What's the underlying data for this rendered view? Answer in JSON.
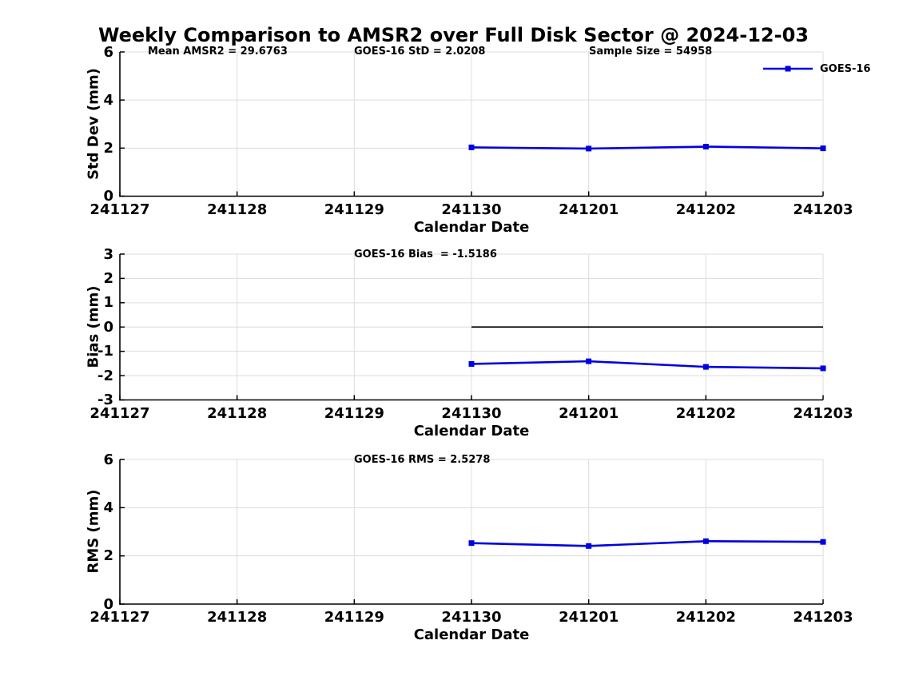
{
  "title": "Weekly Comparison to AMSR2 over Full Disk Sector @ 2024-12-03",
  "legend": {
    "label": "GOES-16",
    "color": "#0000e0"
  },
  "colors": {
    "line": "#0000e0",
    "grid": "#dcdcdc",
    "axis": "#000000",
    "zero_line": "#000000",
    "text": "#000000",
    "background": "#ffffff"
  },
  "x": {
    "label": "Calendar Date",
    "categories": [
      "241127",
      "241128",
      "241129",
      "241130",
      "241201",
      "241202",
      "241203"
    ]
  },
  "chart_data": [
    {
      "type": "line",
      "panel": "std-dev",
      "ylabel": "Std Dev (mm)",
      "ylim": [
        0,
        6
      ],
      "yticks": [
        0,
        2,
        4,
        6
      ],
      "grid": true,
      "x": [
        "241130",
        "241201",
        "241202",
        "241203"
      ],
      "series": [
        {
          "name": "GOES-16",
          "values": [
            2.03,
            1.98,
            2.06,
            1.99
          ]
        }
      ],
      "annotations": [
        {
          "text": "Mean AMSR2 = 29.6763"
        },
        {
          "text": "GOES-16 StD = 2.0208"
        },
        {
          "text": "Sample Size = 54958"
        }
      ]
    },
    {
      "type": "line",
      "panel": "bias",
      "ylabel": "Bias (mm)",
      "ylim": [
        -3,
        3
      ],
      "yticks": [
        -3,
        -2,
        -1,
        0,
        1,
        2,
        3
      ],
      "grid": true,
      "zero_line": true,
      "x": [
        "241130",
        "241201",
        "241202",
        "241203"
      ],
      "series": [
        {
          "name": "GOES-16",
          "values": [
            -1.52,
            -1.41,
            -1.64,
            -1.7
          ]
        }
      ],
      "annotations": [
        {
          "text": "GOES-16 Bias  = -1.5186"
        }
      ]
    },
    {
      "type": "line",
      "panel": "rms",
      "ylabel": "RMS (mm)",
      "ylim": [
        0,
        6
      ],
      "yticks": [
        0,
        2,
        4,
        6
      ],
      "grid": true,
      "x": [
        "241130",
        "241201",
        "241202",
        "241203"
      ],
      "series": [
        {
          "name": "GOES-16",
          "values": [
            2.53,
            2.41,
            2.61,
            2.58
          ]
        }
      ],
      "annotations": [
        {
          "text": "GOES-16 RMS = 2.5278"
        }
      ]
    }
  ]
}
